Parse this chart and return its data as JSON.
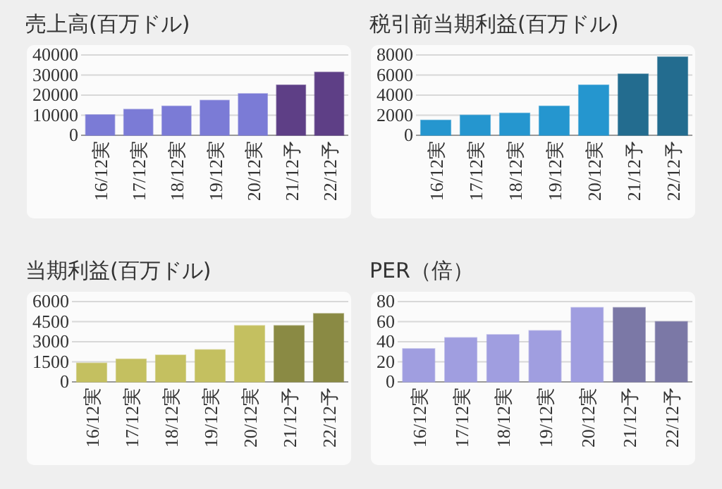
{
  "chart_data": [
    {
      "type": "bar",
      "title": "売上高(百万ドル)",
      "categories": [
        "16/12実",
        "17/12実",
        "18/12実",
        "19/12実",
        "20/12実",
        "21/12予",
        "22/12予"
      ],
      "values": [
        10200,
        12900,
        14500,
        17400,
        20700,
        25000,
        31400
      ],
      "colors": [
        "#7b7bd6",
        "#7b7bd6",
        "#7b7bd6",
        "#7b7bd6",
        "#7b7bd6",
        "#5e3f86",
        "#5e3f86"
      ],
      "ylim": [
        0,
        40000
      ],
      "yticks": [
        0,
        10000,
        20000,
        30000,
        40000
      ],
      "grid": "y"
    },
    {
      "type": "bar",
      "title": "税引前当期利益(百万ドル)",
      "categories": [
        "16/12実",
        "17/12実",
        "18/12実",
        "19/12実",
        "20/12実",
        "21/12予",
        "22/12予"
      ],
      "values": [
        1500,
        2000,
        2200,
        2900,
        5000,
        6100,
        7800
      ],
      "colors": [
        "#2596cf",
        "#2596cf",
        "#2596cf",
        "#2596cf",
        "#2596cf",
        "#236c8f",
        "#236c8f"
      ],
      "ylim": [
        0,
        8000
      ],
      "yticks": [
        0,
        2000,
        4000,
        6000,
        8000
      ],
      "grid": "y"
    },
    {
      "type": "bar",
      "title": "当期利益(百万ドル)",
      "categories": [
        "16/12実",
        "17/12実",
        "18/12実",
        "19/12実",
        "20/12実",
        "21/12予",
        "22/12予"
      ],
      "values": [
        1400,
        1700,
        2000,
        2400,
        4200,
        4200,
        5100
      ],
      "colors": [
        "#c4c060",
        "#c4c060",
        "#c4c060",
        "#c4c060",
        "#c4c060",
        "#8a8a44",
        "#8a8a44"
      ],
      "ylim": [
        0,
        6000
      ],
      "yticks": [
        0,
        1500,
        3000,
        4500,
        6000
      ],
      "grid": "y"
    },
    {
      "type": "bar",
      "title": "PER（倍）",
      "categories": [
        "16/12実",
        "17/12実",
        "18/12実",
        "19/12実",
        "20/12実",
        "21/12予",
        "22/12予"
      ],
      "values": [
        33,
        44,
        47,
        51,
        74,
        74,
        60
      ],
      "colors": [
        "#a09ee0",
        "#a09ee0",
        "#a09ee0",
        "#a09ee0",
        "#a09ee0",
        "#7b78a6",
        "#7b78a6"
      ],
      "ylim": [
        0,
        80
      ],
      "yticks": [
        0,
        20,
        40,
        60,
        80
      ],
      "grid": "y"
    }
  ]
}
